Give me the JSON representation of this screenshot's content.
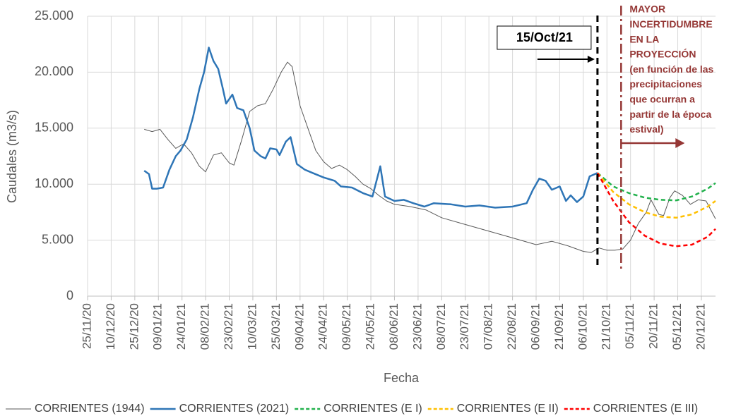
{
  "chart_data": {
    "type": "line",
    "ylabel": "Caudales (m3/s)",
    "xlabel": "Fecha",
    "ylim": [
      0,
      25000
    ],
    "yticks": [
      0,
      {
        "value": 5000,
        "label": "5.000"
      },
      {
        "value": 10000,
        "label": "10.000"
      },
      {
        "value": 15000,
        "label": "15.000"
      },
      {
        "value": 20000,
        "label": "20.000"
      },
      {
        "value": 25000,
        "label": "25.000"
      }
    ],
    "xlim": [
      "2020-11-25",
      "2021-12-29"
    ],
    "xticks": [
      {
        "value": "2020-11-25",
        "label": "25/11/20"
      },
      {
        "value": "2020-12-10",
        "label": "10/12/20"
      },
      {
        "value": "2020-12-25",
        "label": "25/12/20"
      },
      {
        "value": "2021-01-09",
        "label": "09/01/21"
      },
      {
        "value": "2021-01-24",
        "label": "24/01/21"
      },
      {
        "value": "2021-02-08",
        "label": "08/02/21"
      },
      {
        "value": "2021-02-23",
        "label": "23/02/21"
      },
      {
        "value": "2021-03-10",
        "label": "10/03/21"
      },
      {
        "value": "2021-03-25",
        "label": "25/03/21"
      },
      {
        "value": "2021-04-09",
        "label": "09/04/21"
      },
      {
        "value": "2021-04-24",
        "label": "24/04/21"
      },
      {
        "value": "2021-05-09",
        "label": "09/05/21"
      },
      {
        "value": "2021-05-24",
        "label": "24/05/21"
      },
      {
        "value": "2021-06-08",
        "label": "08/06/21"
      },
      {
        "value": "2021-06-23",
        "label": "23/06/21"
      },
      {
        "value": "2021-07-08",
        "label": "08/07/21"
      },
      {
        "value": "2021-07-23",
        "label": "23/07/21"
      },
      {
        "value": "2021-08-07",
        "label": "07/08/21"
      },
      {
        "value": "2021-08-22",
        "label": "22/08/21"
      },
      {
        "value": "2021-09-06",
        "label": "06/09/21"
      },
      {
        "value": "2021-09-21",
        "label": "21/09/21"
      },
      {
        "value": "2021-10-06",
        "label": "06/10/21"
      },
      {
        "value": "2021-10-21",
        "label": "21/10/21"
      },
      {
        "value": "2021-11-05",
        "label": "05/11/21"
      },
      {
        "value": "2021-11-20",
        "label": "20/11/21"
      },
      {
        "value": "2021-12-05",
        "label": "05/12/21"
      },
      {
        "value": "2021-12-20",
        "label": "20/12/21"
      }
    ],
    "grid": true,
    "legend": "bottom",
    "series": [
      {
        "name": "CORRIENTES (1944)",
        "color": "#595959",
        "width": 1,
        "dash": "solid",
        "x": [
          "2020-12-31",
          "2021-01-05",
          "2021-01-10",
          "2021-01-15",
          "2021-01-20",
          "2021-01-25",
          "2021-01-30",
          "2021-02-04",
          "2021-02-08",
          "2021-02-13",
          "2021-02-18",
          "2021-02-23",
          "2021-02-26",
          "2021-03-03",
          "2021-03-08",
          "2021-03-13",
          "2021-03-18",
          "2021-03-23",
          "2021-03-28",
          "2021-04-01",
          "2021-04-04",
          "2021-04-09",
          "2021-04-14",
          "2021-04-19",
          "2021-04-24",
          "2021-04-29",
          "2021-05-04",
          "2021-05-09",
          "2021-05-14",
          "2021-05-19",
          "2021-05-24",
          "2021-05-29",
          "2021-06-03",
          "2021-06-08",
          "2021-06-18",
          "2021-06-28",
          "2021-07-08",
          "2021-07-23",
          "2021-08-07",
          "2021-08-22",
          "2021-09-06",
          "2021-09-16",
          "2021-09-26",
          "2021-10-06",
          "2021-10-11",
          "2021-10-16",
          "2021-10-21",
          "2021-10-26",
          "2021-10-31",
          "2021-11-05",
          "2021-11-10",
          "2021-11-15",
          "2021-11-18",
          "2021-11-23",
          "2021-11-26",
          "2021-11-30",
          "2021-12-03",
          "2021-12-08",
          "2021-12-13",
          "2021-12-18",
          "2021-12-23",
          "2021-12-29"
        ],
        "values": [
          14900,
          14700,
          14900,
          14000,
          13200,
          13600,
          12800,
          11600,
          11100,
          12600,
          12800,
          11900,
          11700,
          14000,
          16500,
          17000,
          17200,
          18500,
          20000,
          20900,
          20500,
          17000,
          15000,
          13000,
          12000,
          11400,
          11700,
          11300,
          10700,
          10000,
          9600,
          9000,
          8500,
          8200,
          8000,
          7700,
          7000,
          6400,
          5800,
          5200,
          4600,
          4900,
          4500,
          4000,
          3900,
          4300,
          4100,
          4100,
          4200,
          5000,
          6500,
          7500,
          8600,
          7300,
          7200,
          8800,
          9400,
          9000,
          8200,
          8600,
          8500,
          6900
        ]
      },
      {
        "name": "CORRIENTES (2021)",
        "color": "#2e75b6",
        "width": 2.5,
        "dash": "solid",
        "x": [
          "2020-12-31",
          "2021-01-03",
          "2021-01-05",
          "2021-01-08",
          "2021-01-12",
          "2021-01-16",
          "2021-01-20",
          "2021-01-23",
          "2021-01-27",
          "2021-01-31",
          "2021-02-04",
          "2021-02-07",
          "2021-02-10",
          "2021-02-13",
          "2021-02-16",
          "2021-02-19",
          "2021-02-21",
          "2021-02-25",
          "2021-02-28",
          "2021-03-04",
          "2021-03-08",
          "2021-03-11",
          "2021-03-15",
          "2021-03-18",
          "2021-03-21",
          "2021-03-25",
          "2021-03-27",
          "2021-03-31",
          "2021-04-03",
          "2021-04-07",
          "2021-04-12",
          "2021-04-17",
          "2021-04-24",
          "2021-05-01",
          "2021-05-05",
          "2021-05-12",
          "2021-05-19",
          "2021-05-25",
          "2021-05-30",
          "2021-06-02",
          "2021-06-08",
          "2021-06-14",
          "2021-06-20",
          "2021-06-27",
          "2021-07-03",
          "2021-07-14",
          "2021-07-23",
          "2021-08-01",
          "2021-08-11",
          "2021-08-22",
          "2021-08-31",
          "2021-09-04",
          "2021-09-08",
          "2021-09-12",
          "2021-09-16",
          "2021-09-21",
          "2021-09-25",
          "2021-09-28",
          "2021-10-02",
          "2021-10-06",
          "2021-10-10",
          "2021-10-15"
        ],
        "values": [
          11200,
          10900,
          9600,
          9600,
          9700,
          11300,
          12500,
          13000,
          14000,
          16000,
          18500,
          20000,
          22200,
          21000,
          20300,
          18500,
          17200,
          18000,
          16800,
          16600,
          15000,
          13000,
          12500,
          12300,
          13200,
          13100,
          12600,
          13800,
          14200,
          11800,
          11300,
          11000,
          10600,
          10300,
          9800,
          9700,
          9200,
          8900,
          11600,
          8900,
          8500,
          8600,
          8300,
          8000,
          8300,
          8200,
          8000,
          8100,
          7900,
          8000,
          8300,
          9500,
          10500,
          10300,
          9500,
          9800,
          8500,
          9000,
          8400,
          8900,
          10700,
          11000
        ]
      },
      {
        "name": "CORRIENTES (E I)",
        "color": "#22b14c",
        "width": 2.5,
        "dash": "dashed",
        "x": [
          "2021-10-15",
          "2021-10-25",
          "2021-11-04",
          "2021-11-14",
          "2021-11-24",
          "2021-12-04",
          "2021-12-14",
          "2021-12-24",
          "2021-12-29"
        ],
        "values": [
          11000,
          9800,
          9200,
          8800,
          8600,
          8550,
          8900,
          9600,
          10100
        ]
      },
      {
        "name": "CORRIENTES (E II)",
        "color": "#ffc000",
        "width": 2.5,
        "dash": "dashed",
        "x": [
          "2021-10-15",
          "2021-10-25",
          "2021-11-04",
          "2021-11-14",
          "2021-11-24",
          "2021-12-04",
          "2021-12-14",
          "2021-12-24",
          "2021-12-29"
        ],
        "values": [
          11000,
          9300,
          8200,
          7500,
          7100,
          7000,
          7300,
          8000,
          8500
        ]
      },
      {
        "name": "CORRIENTES (E III)",
        "color": "#ff0000",
        "width": 2.5,
        "dash": "dashed",
        "x": [
          "2021-10-15",
          "2021-10-25",
          "2021-11-04",
          "2021-11-14",
          "2021-11-24",
          "2021-12-04",
          "2021-12-14",
          "2021-12-24",
          "2021-12-29"
        ],
        "values": [
          11000,
          8500,
          6600,
          5400,
          4700,
          4450,
          4600,
          5300,
          6000
        ]
      }
    ],
    "annotations": [
      {
        "text": "15/Oct/21",
        "x": "2021-10-15",
        "color": "#000000"
      },
      {
        "lines": [
          "MAYOR",
          "INCERTIDUMBRE",
          "EN LA",
          "PROYECCIÓN",
          "(en función de las",
          "precipitaciones",
          "que ocurran a",
          "partir de la época",
          "estival)"
        ],
        "x": "2021-10-30",
        "color": "#953735"
      }
    ]
  }
}
